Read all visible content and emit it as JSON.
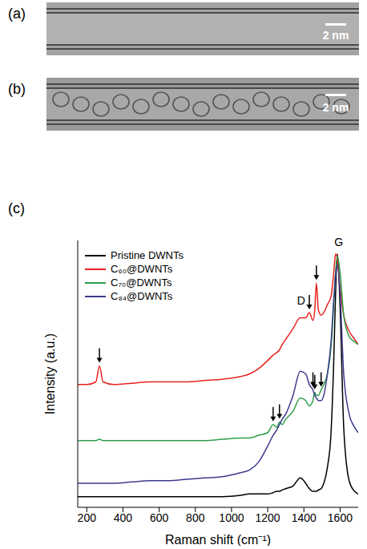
{
  "panels": [
    {
      "label": "(a)",
      "scale_bar": "2 nm"
    },
    {
      "label": "(b)",
      "scale_bar": "2 nm"
    }
  ],
  "chart_data": {
    "type": "line",
    "label": "(c)",
    "x_label": "Raman shift (cm⁻¹)",
    "y_label": "Intensity (a.u.)",
    "x": [
      150,
      200,
      250,
      270,
      290,
      350,
      450,
      550,
      650,
      750,
      850,
      950,
      1050,
      1100,
      1150,
      1200,
      1230,
      1250,
      1265,
      1280,
      1300,
      1340,
      1380,
      1410,
      1430,
      1450,
      1460,
      1469,
      1480,
      1495,
      1510,
      1530,
      1550,
      1565,
      1575,
      1585,
      1600,
      1620,
      1650,
      1680,
      1700
    ],
    "xlim": [
      150,
      1700
    ],
    "xticks": [
      200,
      400,
      600,
      800,
      1000,
      1200,
      1400,
      1600
    ],
    "ylim": [
      0,
      100
    ],
    "yticks": [],
    "tick_labels": "x",
    "legend": "upper left",
    "series": [
      {
        "name": "Pristine DWNTs",
        "color": "#000000",
        "values": [
          4,
          4,
          4,
          4,
          4,
          4,
          4,
          4,
          4,
          4,
          4,
          4,
          4.5,
          5,
          5,
          5,
          5.5,
          6,
          6,
          6.5,
          7,
          8,
          11,
          9,
          7,
          6,
          6,
          6,
          6.5,
          7,
          9,
          15,
          28,
          55,
          80,
          95,
          75,
          30,
          10,
          6,
          5
        ],
        "arrows_x": []
      },
      {
        "name": "C₆₀@DWNTs",
        "color": "#e8211e",
        "values": [
          46,
          46,
          47,
          53,
          47,
          46,
          46.5,
          47,
          47,
          47,
          47.5,
          48,
          49,
          50,
          52,
          55,
          57,
          58,
          59,
          61,
          63,
          67,
          71,
          71,
          73,
          70,
          74,
          84,
          74,
          72,
          73,
          76,
          79,
          88,
          95,
          93,
          82,
          72,
          66,
          63,
          61
        ],
        "arrows_x": [
          270,
          1430,
          1469
        ]
      },
      {
        "name": "C₇₀@DWNTs",
        "color": "#2e9e48",
        "values": [
          25,
          25,
          25,
          25.5,
          25,
          25,
          25,
          25,
          25,
          25,
          25,
          25.5,
          26,
          26,
          27,
          28,
          31,
          30,
          32,
          31,
          33,
          36,
          41,
          40,
          38,
          40,
          43,
          42,
          42,
          44,
          46,
          50,
          60,
          76,
          88,
          94,
          88,
          72,
          64,
          62,
          61
        ],
        "arrows_x": [
          1230,
          1265,
          1460,
          1495
        ]
      },
      {
        "name": "C₈₄@DWNTs",
        "color": "#3d3b8e",
        "values": [
          9,
          9,
          9,
          9,
          9,
          9,
          9.5,
          10,
          10,
          10.5,
          11,
          11.5,
          13,
          14,
          17,
          23,
          27,
          29,
          31,
          33,
          35,
          42,
          51,
          50,
          46,
          44,
          42,
          41,
          40,
          40,
          42,
          50,
          62,
          78,
          87,
          91,
          80,
          50,
          35,
          30,
          28
        ],
        "arrows_x": [
          1450
        ]
      }
    ],
    "annotations": [
      {
        "text": "D",
        "x": 1385,
        "y": 77
      },
      {
        "text": "G",
        "x": 1592,
        "y": 99
      }
    ]
  }
}
